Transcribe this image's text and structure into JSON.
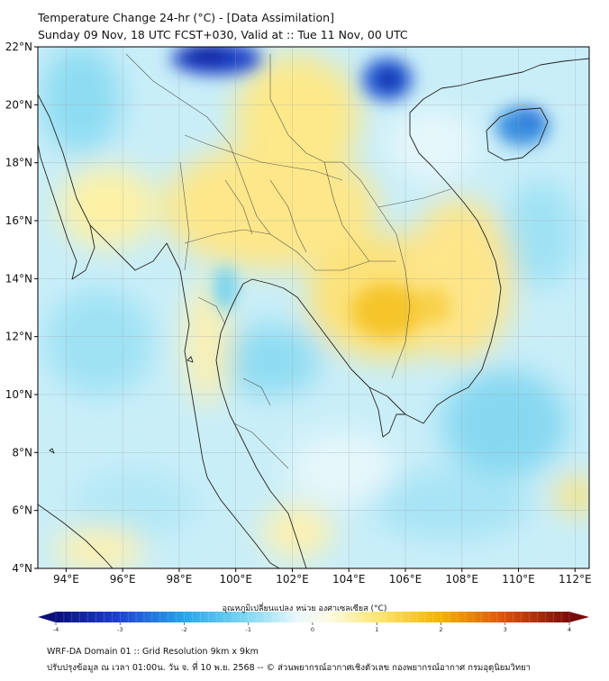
{
  "header": {
    "title": "Temperature Change 24-hr (°C) - [Data Assimilation]",
    "subtitle": "Sunday 09 Nov, 18 UTC FCST+030, Valid at :: Tue 11 Nov, 00 UTC"
  },
  "map": {
    "lat_range": [
      4,
      22
    ],
    "lon_range": [
      93,
      112.5
    ],
    "lat_ticks": [
      "4°N",
      "6°N",
      "8°N",
      "10°N",
      "12°N",
      "14°N",
      "16°N",
      "18°N",
      "20°N",
      "22°N"
    ],
    "lon_ticks": [
      "94°E",
      "96°E",
      "98°E",
      "100°E",
      "102°E",
      "104°E",
      "106°E",
      "108°E",
      "110°E",
      "112°E"
    ],
    "grid": true,
    "colors": {
      "warm_strong": "#f2b400",
      "warm": "#fbe36b",
      "warm_light": "#fdf5b8",
      "cool_light": "#cdeff8",
      "cool": "#7fd6f0",
      "cold": "#2a5fd8",
      "cold_strong": "#0d1e9c",
      "borders": "#222222"
    }
  },
  "colorbar": {
    "title": "อุณหภูมิเปลี่ยนแปลง หน่วย องศาเซลเซียส (°C)",
    "ticks": [
      "-4",
      "-3",
      "-2",
      "-1",
      "0",
      "1",
      "2",
      "3",
      "4"
    ],
    "range": [
      -4,
      4
    ]
  },
  "footer": {
    "line1": "WRF-DA Domain 01 :: Grid Resolution 9km x 9km",
    "line2": "ปรับปรุงข้อมูล ณ เวลา 01:00น. วัน จ. ที่ 10 พ.ย. 2568 -- © ส่วนพยากรณ์อากาศเชิงตัวเลข กองพยากรณ์อากาศ กรมอุตุนิยมวิทยา"
  }
}
